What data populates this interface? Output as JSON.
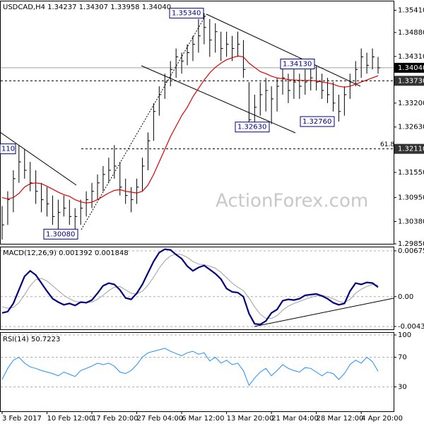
{
  "chart_data": [
    {
      "type": "ohlc",
      "title": "USDCAD,H4 1.34237 1.34307 1.33958 1.34040",
      "watermark": "ActionForex.com",
      "categories": [
        "3 Feb 2017",
        null,
        null,
        null,
        null,
        null,
        null,
        null,
        "10 Feb 12:00",
        null,
        null,
        null,
        null,
        null,
        null,
        null,
        "17 Feb 20:00",
        null,
        null,
        null,
        null,
        null,
        null,
        null,
        "27 Feb 04:00",
        null,
        null,
        null,
        null,
        null,
        null,
        null,
        "6 Mar 12:00",
        null,
        null,
        null,
        null,
        null,
        null,
        null,
        "13 Mar 20:00",
        null,
        null,
        null,
        null,
        null,
        null,
        null,
        "21 Mar 04:00",
        null,
        null,
        null,
        null,
        null,
        null,
        null,
        "28 Mar 12:00",
        null,
        null,
        null,
        null,
        null,
        null,
        null,
        "4 Apr 20:00",
        null,
        null,
        null
      ],
      "color": "#000000",
      "high": [
        1.3075,
        1.311,
        1.316,
        1.322,
        1.321,
        1.318,
        1.316,
        1.313,
        1.312,
        1.31,
        1.309,
        1.31,
        1.309,
        1.307,
        1.309,
        1.311,
        1.313,
        1.315,
        1.317,
        1.319,
        1.322,
        1.318,
        1.314,
        1.312,
        1.314,
        1.319,
        1.325,
        1.332,
        1.336,
        1.339,
        1.342,
        1.345,
        1.344,
        1.346,
        1.348,
        1.352,
        1.3534,
        1.352,
        1.351,
        1.349,
        1.349,
        1.348,
        1.349,
        1.347,
        1.337,
        1.334,
        1.337,
        1.338,
        1.336,
        1.338,
        1.3413,
        1.339,
        1.34,
        1.339,
        1.34,
        1.341,
        1.341,
        1.339,
        1.338,
        1.337,
        1.334,
        1.336,
        1.339,
        1.342,
        1.345,
        1.344,
        1.345,
        1.343
      ],
      "low": [
        1.2995,
        1.303,
        1.306,
        1.313,
        1.314,
        1.311,
        1.308,
        1.306,
        1.305,
        1.303,
        1.302,
        1.305,
        1.303,
        1.3008,
        1.303,
        1.305,
        1.307,
        1.309,
        1.311,
        1.313,
        1.314,
        1.31,
        1.308,
        1.306,
        1.308,
        1.311,
        1.316,
        1.323,
        1.329,
        1.333,
        1.336,
        1.338,
        1.339,
        1.341,
        1.342,
        1.344,
        1.346,
        1.343,
        1.344,
        1.342,
        1.343,
        1.342,
        1.343,
        1.338,
        1.3263,
        1.327,
        1.329,
        1.33,
        1.327,
        1.33,
        1.334,
        1.332,
        1.333,
        1.333,
        1.334,
        1.335,
        1.335,
        1.333,
        1.332,
        1.33,
        1.3276,
        1.329,
        1.333,
        1.336,
        1.338,
        1.339,
        1.34,
        1.339
      ],
      "close": [
        1.303,
        1.309,
        1.314,
        1.318,
        1.316,
        1.313,
        1.311,
        1.309,
        1.308,
        1.305,
        1.306,
        1.307,
        1.305,
        1.305,
        1.307,
        1.309,
        1.311,
        1.313,
        1.315,
        1.316,
        1.317,
        1.312,
        1.31,
        1.309,
        1.312,
        1.317,
        1.323,
        1.33,
        1.334,
        1.337,
        1.34,
        1.343,
        1.342,
        1.344,
        1.346,
        1.348,
        1.35,
        1.347,
        1.349,
        1.345,
        1.346,
        1.345,
        1.346,
        1.34,
        1.328,
        1.331,
        1.334,
        1.335,
        1.333,
        1.336,
        1.338,
        1.335,
        1.337,
        1.336,
        1.337,
        1.338,
        1.337,
        1.335,
        1.334,
        1.332,
        1.33,
        1.334,
        1.337,
        1.34,
        1.343,
        1.341,
        1.343,
        1.3404
      ],
      "ma": {
        "color": "#e00000",
        "values": [
          1.3095,
          1.3092,
          1.3095,
          1.3105,
          1.312,
          1.3128,
          1.313,
          1.3128,
          1.3122,
          1.3115,
          1.3108,
          1.3102,
          1.3098,
          1.309,
          1.3085,
          1.3082,
          1.3084,
          1.309,
          1.3098,
          1.3106,
          1.3112,
          1.3114,
          1.311,
          1.3108,
          1.3106,
          1.311,
          1.3125,
          1.315,
          1.318,
          1.321,
          1.324,
          1.3265,
          1.329,
          1.331,
          1.3335,
          1.3355,
          1.3375,
          1.3392,
          1.3405,
          1.3415,
          1.3423,
          1.3428,
          1.3432,
          1.343,
          1.3415,
          1.3405,
          1.3395,
          1.339,
          1.3384,
          1.338,
          1.3378,
          1.3376,
          1.3375,
          1.3374,
          1.3374,
          1.3374,
          1.3373,
          1.337,
          1.3368,
          1.3365,
          1.336,
          1.3358,
          1.336,
          1.3365,
          1.337,
          1.3375,
          1.338,
          1.3385
        ]
      },
      "ylim": [
        1.2985,
        1.3562
      ],
      "yticks": [
        {
          "value": 1.3541,
          "label": "1.35410"
        },
        {
          "value": 1.3488,
          "label": "1.34880"
        },
        {
          "value": 1.3431,
          "label": "1.34310"
        },
        {
          "value": 1.332,
          "label": "1.33200"
        },
        {
          "value": 1.3263,
          "label": "1.32630"
        },
        {
          "value": 1.3155,
          "label": "1.31550"
        },
        {
          "value": 1.3095,
          "label": "1.30950"
        },
        {
          "value": 1.3038,
          "label": "1.30380"
        },
        {
          "value": 1.2985,
          "label": "1.29850"
        }
      ],
      "levels": [
        {
          "value": 1.3404,
          "label": "1.34040",
          "style": "solid"
        },
        {
          "value": 1.3373,
          "label": "1.33730",
          "style": "dashed"
        },
        {
          "value": 1.3211,
          "label": "1.32110",
          "style": "dashed",
          "left_label": "110",
          "note": "61.8"
        }
      ],
      "annotations": [
        {
          "value": 1.3534,
          "label": "1.35340"
        },
        {
          "value": 1.3413,
          "label": "1.34130"
        },
        {
          "value": 1.3263,
          "label": "1.32630"
        },
        {
          "value": 1.3276,
          "label": "1.32760"
        },
        {
          "value": 1.3008,
          "label": "1.30080"
        }
      ]
    },
    {
      "type": "macd",
      "title": "MACD(12,26,9) 0.001392 0.001848",
      "macd": {
        "color": "#000080",
        "values": [
          -0.0024,
          -0.0022,
          -0.001,
          0.001,
          0.003,
          0.0038,
          0.0032,
          0.002,
          0.0008,
          -0.0003,
          -0.0008,
          -0.0012,
          -0.001,
          -0.0013,
          -0.0008,
          -0.0009,
          -0.0005,
          0.0005,
          0.0016,
          0.002,
          0.0018,
          0.001,
          -0.0002,
          -0.0004,
          0.0005,
          0.0018,
          0.0035,
          0.0052,
          0.0065,
          0.007,
          0.0069,
          0.0062,
          0.0056,
          0.0045,
          0.0038,
          0.0043,
          0.0046,
          0.004,
          0.0034,
          0.0026,
          0.0012,
          0.0007,
          0.0006,
          0,
          -0.0025,
          -0.004,
          -0.0041,
          -0.0036,
          -0.0024,
          -0.0019,
          -0.0006,
          -0.0004,
          -0.0005,
          -0.0003,
          0.0002,
          0.0003,
          0.0004,
          0.0001,
          -0.0003,
          -0.0009,
          -0.0012,
          -0.001,
          0.0008,
          0.002,
          0.0018,
          0.0021,
          0.002,
          0.0014
        ]
      },
      "signal": {
        "color": "#a0a0a0",
        "values": [
          -0.0015,
          -0.0017,
          -0.0016,
          -0.0009,
          0.0003,
          0.0016,
          0.0025,
          0.0027,
          0.0023,
          0.0016,
          0.0009,
          0.0002,
          -0.0003,
          -0.0007,
          -0.0008,
          -0.0009,
          -0.0008,
          -0.0004,
          0.0002,
          0.0009,
          0.0014,
          0.0015,
          0.001,
          0.0005,
          0.0004,
          0.0008,
          0.0017,
          0.0029,
          0.0042,
          0.0053,
          0.006,
          0.0063,
          0.0062,
          0.0058,
          0.0052,
          0.0048,
          0.0047,
          0.0045,
          0.0042,
          0.0036,
          0.0028,
          0.002,
          0.0014,
          0.0009,
          -0.0002,
          -0.0015,
          -0.0026,
          -0.0032,
          -0.0032,
          -0.0028,
          -0.002,
          -0.0014,
          -0.001,
          -0.0007,
          -0.0004,
          -0.0001,
          0.0001,
          0.0002,
          0,
          -0.0003,
          -0.0007,
          -0.0009,
          -0.0004,
          0.0005,
          0.0011,
          0.0015,
          0.0018,
          0.0017
        ]
      },
      "ylim": [
        -0.004816,
        0.007275
      ],
      "yticks": [
        0.006754,
        {
          "value": 0,
          "label": "0.00"
        },
        -0.004399
      ]
    },
    {
      "type": "rsi",
      "title": "RSI(14) 50.7223",
      "color": "#1e90ff",
      "values": [
        40,
        55,
        66,
        70,
        62,
        57,
        55,
        52,
        50,
        48,
        45,
        50,
        47,
        44,
        52,
        55,
        58,
        62,
        60,
        62,
        58,
        50,
        48,
        52,
        60,
        70,
        76,
        78,
        80,
        82,
        78,
        75,
        72,
        76,
        78,
        74,
        76,
        65,
        70,
        62,
        66,
        60,
        62,
        52,
        32,
        42,
        50,
        55,
        45,
        52,
        60,
        55,
        52,
        50,
        56,
        55,
        50,
        45,
        50,
        48,
        40,
        48,
        60,
        66,
        62,
        70,
        64,
        51
      ],
      "ylim": [
        0,
        100
      ],
      "yticks": [
        100,
        70,
        30
      ]
    }
  ]
}
